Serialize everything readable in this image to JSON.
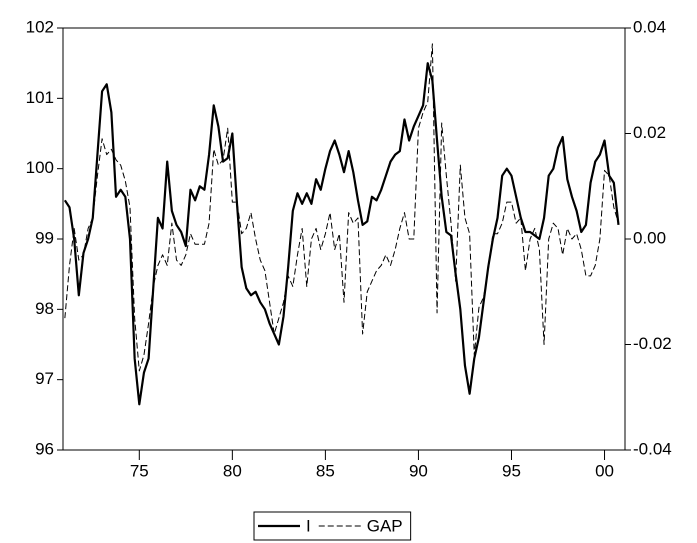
{
  "chart_data": {
    "type": "line",
    "x": [
      1971,
      1971.25,
      1971.5,
      1971.75,
      1972,
      1972.25,
      1972.5,
      1972.75,
      1973,
      1973.25,
      1973.5,
      1973.75,
      1974,
      1974.25,
      1974.5,
      1974.75,
      1975,
      1975.25,
      1975.5,
      1975.75,
      1976,
      1976.25,
      1976.5,
      1976.75,
      1977,
      1977.25,
      1977.5,
      1977.75,
      1978,
      1978.25,
      1978.5,
      1978.75,
      1979,
      1979.25,
      1979.5,
      1979.75,
      1980,
      1980.25,
      1980.5,
      1980.75,
      1981,
      1981.25,
      1981.5,
      1981.75,
      1982,
      1982.25,
      1982.5,
      1982.75,
      1983,
      1983.25,
      1983.5,
      1983.75,
      1984,
      1984.25,
      1984.5,
      1984.75,
      1985,
      1985.25,
      1985.5,
      1985.75,
      1986,
      1986.25,
      1986.5,
      1986.75,
      1987,
      1987.25,
      1987.5,
      1987.75,
      1988,
      1988.25,
      1988.5,
      1988.75,
      1989,
      1989.25,
      1989.5,
      1989.75,
      1990,
      1990.25,
      1990.5,
      1990.75,
      1991,
      1991.25,
      1991.5,
      1991.75,
      1992,
      1992.25,
      1992.5,
      1992.75,
      1993,
      1993.25,
      1993.5,
      1993.75,
      1994,
      1994.25,
      1994.5,
      1994.75,
      1995,
      1995.25,
      1995.5,
      1995.75,
      1996,
      1996.25,
      1996.5,
      1996.75,
      1997,
      1997.25,
      1997.5,
      1997.75,
      1998,
      1998.25,
      1998.5,
      1998.75,
      1999,
      1999.25,
      1999.5,
      1999.75,
      2000,
      2000.25,
      2000.5,
      2000.75
    ],
    "series": [
      {
        "name": "I",
        "color": "#000000",
        "line_style": "solid",
        "values": [
          99.55,
          99.45,
          99.0,
          98.2,
          98.8,
          99.0,
          99.3,
          100.2,
          101.1,
          101.2,
          100.8,
          99.6,
          99.7,
          99.6,
          99.0,
          97.3,
          96.65,
          97.1,
          97.3,
          98.3,
          99.3,
          99.15,
          100.1,
          99.4,
          99.2,
          99.1,
          98.9,
          99.7,
          99.55,
          99.75,
          99.7,
          100.2,
          100.9,
          100.6,
          100.1,
          100.15,
          100.5,
          99.5,
          98.6,
          98.3,
          98.2,
          98.25,
          98.1,
          98.0,
          97.8,
          97.65,
          97.5,
          97.9,
          98.6,
          99.4,
          99.65,
          99.5,
          99.65,
          99.5,
          99.85,
          99.7,
          100.0,
          100.25,
          100.4,
          100.2,
          99.95,
          100.25,
          99.95,
          99.55,
          99.2,
          99.25,
          99.6,
          99.55,
          99.7,
          99.9,
          100.1,
          100.2,
          100.25,
          100.7,
          100.4,
          100.6,
          100.75,
          100.9,
          101.5,
          101.25,
          100.4,
          99.6,
          99.1,
          99.05,
          98.5,
          98.0,
          97.2,
          96.8,
          97.3,
          97.6,
          98.1,
          98.6,
          99.0,
          99.3,
          99.9,
          100.0,
          99.9,
          99.6,
          99.3,
          99.1,
          99.1,
          99.05,
          99.0,
          99.3,
          99.9,
          100.0,
          100.3,
          100.45,
          99.85,
          99.6,
          99.4,
          99.1,
          99.2,
          99.8,
          100.1,
          100.2,
          100.4,
          99.9,
          99.8,
          99.2
        ]
      },
      {
        "name": "GAP",
        "color": "#000000",
        "line_style": "dashed",
        "axis": "y2",
        "values": [
          -0.015,
          -0.005,
          0.002,
          -0.004,
          -0.003,
          0.002,
          0.004,
          0.012,
          0.019,
          0.016,
          0.017,
          0.015,
          0.014,
          0.011,
          0.006,
          -0.015,
          -0.025,
          -0.022,
          -0.016,
          -0.009,
          -0.005,
          -0.003,
          -0.005,
          0.003,
          -0.004,
          -0.005,
          -0.003,
          0.001,
          -0.001,
          -0.001,
          -0.001,
          0.003,
          0.017,
          0.014,
          0.015,
          0.021,
          0.007,
          0.007,
          0.001,
          0.002,
          0.005,
          0.0,
          -0.004,
          -0.006,
          -0.012,
          -0.018,
          -0.015,
          -0.012,
          -0.007,
          -0.009,
          -0.003,
          0.002,
          -0.009,
          0.0,
          0.002,
          -0.002,
          0.001,
          0.005,
          -0.002,
          0.001,
          -0.012,
          0.005,
          0.003,
          0.004,
          -0.018,
          -0.01,
          -0.008,
          -0.006,
          -0.005,
          -0.003,
          -0.005,
          -0.002,
          0.002,
          0.005,
          0.0,
          0.0,
          0.021,
          0.024,
          0.026,
          0.037,
          -0.014,
          0.022,
          0.012,
          0.003,
          -0.008,
          0.014,
          0.004,
          0.001,
          -0.022,
          -0.013,
          -0.011,
          -0.006,
          0.001,
          0.001,
          0.003,
          0.007,
          0.007,
          0.003,
          0.004,
          -0.006,
          0.0,
          0.002,
          -0.002,
          -0.02,
          0.0,
          0.003,
          0.002,
          -0.003,
          0.002,
          0.0,
          0.001,
          -0.002,
          -0.007,
          -0.007,
          -0.005,
          0.0,
          0.013,
          0.012,
          0.006,
          0.003
        ]
      }
    ],
    "xlim": [
      1970.9,
      2001.1
    ],
    "xticks": [
      {
        "value": 1975,
        "label": "75"
      },
      {
        "value": 1980,
        "label": "80"
      },
      {
        "value": 1985,
        "label": "85"
      },
      {
        "value": 1990,
        "label": "90"
      },
      {
        "value": 1995,
        "label": "95"
      },
      {
        "value": 2000,
        "label": "00"
      }
    ],
    "ylim": [
      96,
      102
    ],
    "yticks": [
      96,
      97,
      98,
      99,
      100,
      101,
      102
    ],
    "y2lim": [
      -0.04,
      0.04
    ],
    "y2ticks": [
      {
        "value": -0.04,
        "label": "-0.04"
      },
      {
        "value": -0.02,
        "label": "-0.02"
      },
      {
        "value": 0,
        "label": "0.00"
      },
      {
        "value": 0.02,
        "label": "0.02"
      },
      {
        "value": 0.04,
        "label": "0.04"
      }
    ],
    "grid": false,
    "legend": "bottom"
  }
}
